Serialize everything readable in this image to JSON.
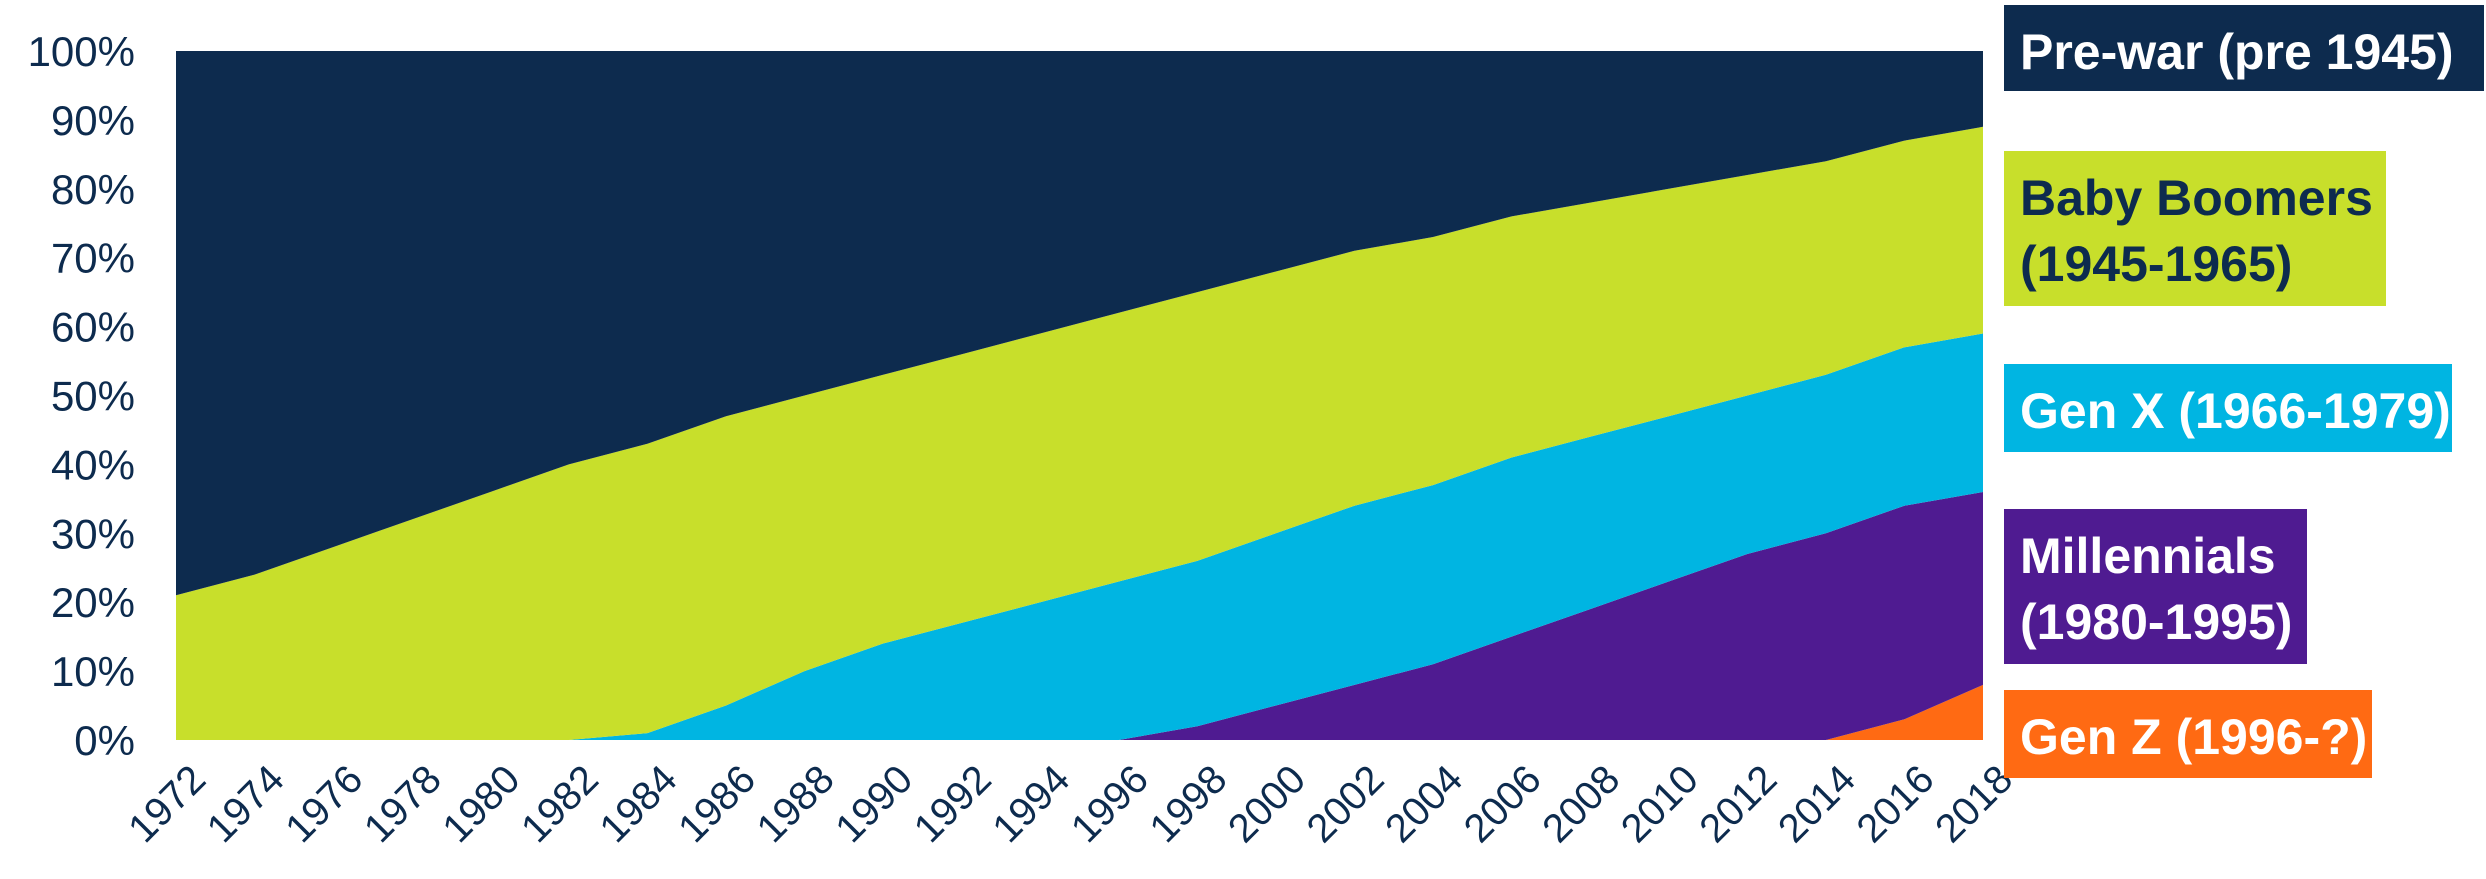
{
  "chart_data": {
    "type": "area",
    "stacked": true,
    "percent": true,
    "x": [
      "1972",
      "1974",
      "1976",
      "1978",
      "1980",
      "1982",
      "1984",
      "1986",
      "1988",
      "1990",
      "1992",
      "1994",
      "1996",
      "1998",
      "2000",
      "2002",
      "2004",
      "2006",
      "2008",
      "2010",
      "2012",
      "2014",
      "2016",
      "2018"
    ],
    "series": [
      {
        "name": "Gen Z (1996-?)",
        "color": "#ff6a13",
        "values": [
          0,
          0,
          0,
          0,
          0,
          0,
          0,
          0,
          0,
          0,
          0,
          0,
          0,
          0,
          0,
          0,
          0,
          0,
          0,
          0,
          0,
          0,
          3,
          8
        ]
      },
      {
        "name": "Millennials (1980-1995)",
        "color": "#4f1b91",
        "values": [
          0,
          0,
          0,
          0,
          0,
          0,
          0,
          0,
          0,
          0,
          0,
          0,
          0,
          2,
          5,
          8,
          11,
          15,
          19,
          23,
          27,
          30,
          31,
          28
        ]
      },
      {
        "name": "Gen X (1966-1979)",
        "color": "#00b5e2",
        "values": [
          0,
          0,
          0,
          0,
          0,
          0,
          1,
          5,
          10,
          14,
          17,
          20,
          23,
          24,
          25,
          26,
          26,
          26,
          25,
          24,
          23,
          23,
          23,
          23
        ]
      },
      {
        "name": "Baby Boomers (1945-1965)",
        "color": "#c8df2b",
        "values": [
          21,
          24,
          28,
          32,
          36,
          40,
          42,
          42,
          40,
          39,
          39,
          39,
          39,
          39,
          38,
          37,
          36,
          35,
          34,
          33,
          32,
          31,
          30,
          30
        ]
      },
      {
        "name": "Pre-war (pre 1945)",
        "color": "#0d2b4e",
        "values": [
          79,
          76,
          72,
          68,
          64,
          60,
          57,
          53,
          50,
          47,
          44,
          41,
          38,
          35,
          32,
          29,
          27,
          24,
          22,
          20,
          18,
          16,
          13,
          11
        ]
      }
    ],
    "ylim": [
      0,
      100
    ],
    "yticks": [
      "0%",
      "10%",
      "20%",
      "30%",
      "40%",
      "50%",
      "60%",
      "70%",
      "80%",
      "90%",
      "100%"
    ],
    "grid": false,
    "legend_position": "right"
  },
  "legend": {
    "pre_war": {
      "line1": "Pre-war (pre 1945)",
      "line2": "",
      "bg": "#0d2b4e",
      "fg": "#ffffff"
    },
    "boomers": {
      "line1": "Baby Boomers",
      "line2": "(1945-1965)",
      "bg": "#c8df2b",
      "fg": "#0d2b4e"
    },
    "gen_x": {
      "line1": "Gen X (1966-1979)",
      "line2": "",
      "bg": "#00b5e2",
      "fg": "#ffffff"
    },
    "millennials": {
      "line1": "Millennials",
      "line2": "(1980-1995)",
      "bg": "#4f1b91",
      "fg": "#ffffff"
    },
    "gen_z": {
      "line1": "Gen Z (1996-?)",
      "line2": "",
      "bg": "#ff6a13",
      "fg": "#ffffff"
    }
  }
}
